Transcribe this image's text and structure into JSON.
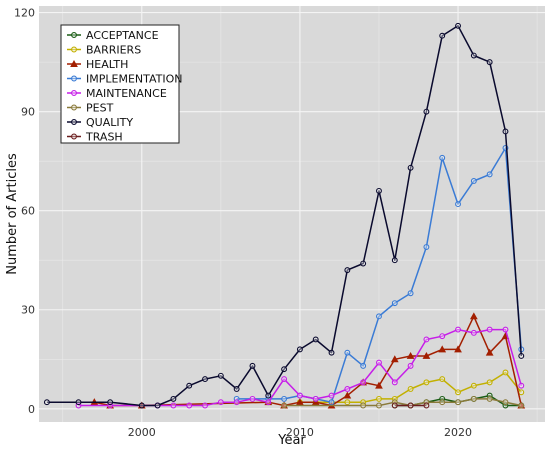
{
  "chart_data": {
    "type": "line",
    "xlabel": "Year",
    "ylabel": "Number of Articles",
    "xlim": [
      1993.5,
      2025.5
    ],
    "ylim": [
      -4,
      122
    ],
    "xticks": [
      "2000",
      "2010",
      "2020"
    ],
    "yticks": [
      "0",
      "30",
      "60",
      "90",
      "120"
    ],
    "background": "#d9d9d9",
    "grid": true,
    "legend_position": "top-left",
    "series": [
      {
        "name": "ACCEPTANCE",
        "color": "#1a5c14",
        "marker": "circle",
        "points": [
          [
            2016,
            1
          ],
          [
            2017,
            1
          ],
          [
            2018,
            2
          ],
          [
            2019,
            3
          ],
          [
            2020,
            2
          ],
          [
            2021,
            3
          ],
          [
            2022,
            4
          ],
          [
            2023,
            1
          ],
          [
            2024,
            1
          ]
        ]
      },
      {
        "name": "BARRIERS",
        "color": "#c2b000",
        "marker": "circle",
        "points": [
          [
            2010,
            2
          ],
          [
            2011,
            2
          ],
          [
            2012,
            2
          ],
          [
            2013,
            2
          ],
          [
            2014,
            2
          ],
          [
            2015,
            3
          ],
          [
            2016,
            3
          ],
          [
            2017,
            6
          ],
          [
            2018,
            8
          ],
          [
            2019,
            9
          ],
          [
            2020,
            5
          ],
          [
            2021,
            7
          ],
          [
            2022,
            8
          ],
          [
            2023,
            11
          ],
          [
            2024,
            5
          ]
        ]
      },
      {
        "name": "HEALTH",
        "color": "#a31f00",
        "marker": "triangle",
        "points": [
          [
            1997,
            2
          ],
          [
            1998,
            1
          ],
          [
            2000,
            1
          ],
          [
            2008,
            2
          ],
          [
            2009,
            1
          ],
          [
            2010,
            2
          ],
          [
            2011,
            2
          ],
          [
            2012,
            1
          ],
          [
            2013,
            4
          ],
          [
            2014,
            8
          ],
          [
            2015,
            7
          ],
          [
            2016,
            15
          ],
          [
            2017,
            16
          ],
          [
            2018,
            16
          ],
          [
            2019,
            18
          ],
          [
            2020,
            18
          ],
          [
            2021,
            28
          ],
          [
            2022,
            17
          ],
          [
            2023,
            22
          ],
          [
            2024,
            1
          ]
        ]
      },
      {
        "name": "IMPLEMENTATION",
        "color": "#3a7bd5",
        "marker": "circle",
        "points": [
          [
            2006,
            3
          ],
          [
            2008,
            3
          ],
          [
            2009,
            3
          ],
          [
            2010,
            4
          ],
          [
            2011,
            3
          ],
          [
            2012,
            2
          ],
          [
            2013,
            17
          ],
          [
            2014,
            13
          ],
          [
            2015,
            28
          ],
          [
            2016,
            32
          ],
          [
            2017,
            35
          ],
          [
            2018,
            49
          ],
          [
            2019,
            76
          ],
          [
            2020,
            62
          ],
          [
            2021,
            69
          ],
          [
            2022,
            71
          ],
          [
            2023,
            79
          ],
          [
            2024,
            18
          ]
        ]
      },
      {
        "name": "MAINTENANCE",
        "color": "#c61ee8",
        "marker": "circle",
        "points": [
          [
            1996,
            1
          ],
          [
            1998,
            1
          ],
          [
            2001,
            1
          ],
          [
            2002,
            1
          ],
          [
            2003,
            1
          ],
          [
            2004,
            1
          ],
          [
            2005,
            2
          ],
          [
            2006,
            2
          ],
          [
            2007,
            3
          ],
          [
            2008,
            2
          ],
          [
            2009,
            9
          ],
          [
            2010,
            4
          ],
          [
            2011,
            3
          ],
          [
            2012,
            4
          ],
          [
            2013,
            6
          ],
          [
            2014,
            8
          ],
          [
            2015,
            14
          ],
          [
            2016,
            8
          ],
          [
            2017,
            13
          ],
          [
            2018,
            21
          ],
          [
            2019,
            22
          ],
          [
            2020,
            24
          ],
          [
            2021,
            23
          ],
          [
            2022,
            24
          ],
          [
            2023,
            24
          ],
          [
            2024,
            7
          ]
        ]
      },
      {
        "name": "PEST",
        "color": "#8a7a3a",
        "marker": "circle",
        "points": [
          [
            2009,
            1
          ],
          [
            2014,
            1
          ],
          [
            2015,
            1
          ],
          [
            2016,
            2
          ],
          [
            2017,
            1
          ],
          [
            2018,
            2
          ],
          [
            2019,
            2
          ],
          [
            2020,
            2
          ],
          [
            2021,
            3
          ],
          [
            2022,
            3
          ],
          [
            2023,
            2
          ],
          [
            2024,
            1
          ]
        ]
      },
      {
        "name": "QUALITY",
        "color": "#0a0a2e",
        "marker": "circle",
        "points": [
          [
            1994,
            2
          ],
          [
            1996,
            2
          ],
          [
            1998,
            2
          ],
          [
            2000,
            1
          ],
          [
            2001,
            1
          ],
          [
            2002,
            3
          ],
          [
            2003,
            7
          ],
          [
            2004,
            9
          ],
          [
            2005,
            10
          ],
          [
            2006,
            6
          ],
          [
            2007,
            13
          ],
          [
            2008,
            4
          ],
          [
            2009,
            12
          ],
          [
            2010,
            18
          ],
          [
            2011,
            21
          ],
          [
            2012,
            17
          ],
          [
            2013,
            42
          ],
          [
            2014,
            44
          ],
          [
            2015,
            66
          ],
          [
            2016,
            45
          ],
          [
            2017,
            73
          ],
          [
            2018,
            90
          ],
          [
            2019,
            113
          ],
          [
            2020,
            116
          ],
          [
            2021,
            107
          ],
          [
            2022,
            105
          ],
          [
            2023,
            84
          ],
          [
            2024,
            16
          ]
        ]
      },
      {
        "name": "TRASH",
        "color": "#6b1e1e",
        "marker": "circle",
        "points": [
          [
            2016,
            1
          ],
          [
            2017,
            1
          ],
          [
            2018,
            1
          ]
        ]
      }
    ]
  }
}
